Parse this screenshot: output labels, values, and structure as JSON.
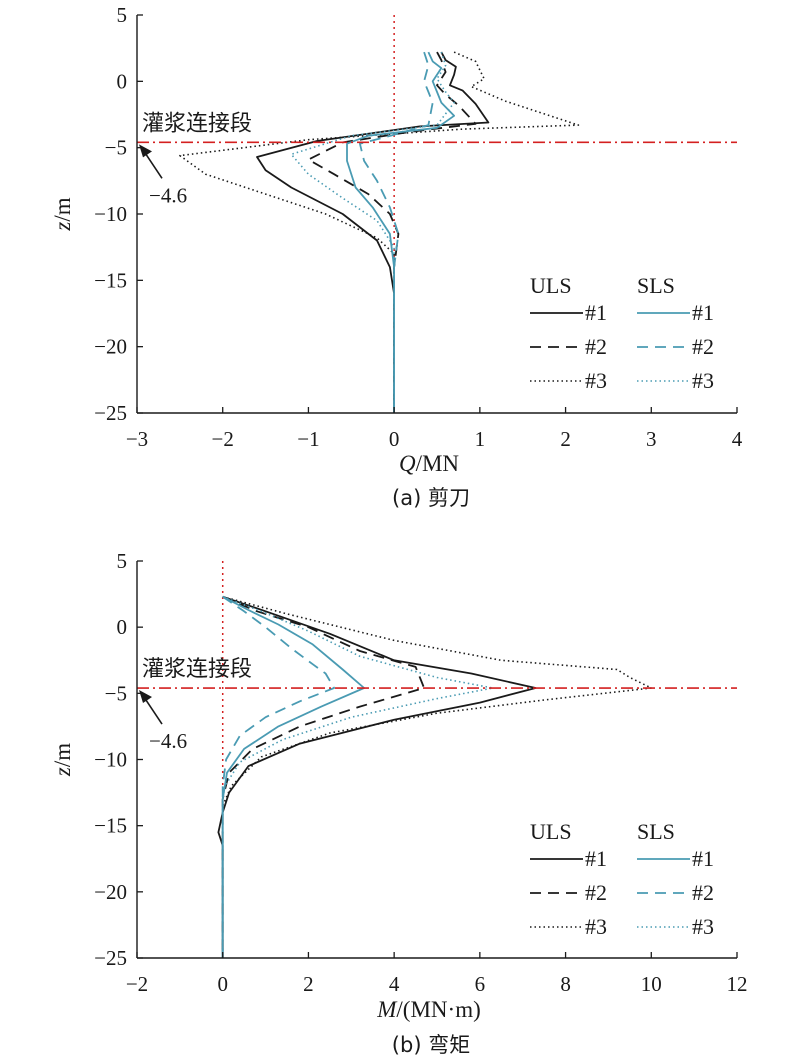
{
  "chart_data": [
    {
      "type": "line",
      "caption": "(a) 剪刀",
      "xlabel_var": "Q",
      "xlabel_unit": "/MN",
      "ylabel_var": "z",
      "ylabel_unit": "/m",
      "xlim": [
        -3,
        4
      ],
      "ylim": [
        -25,
        5
      ],
      "xticks": [
        "−3",
        "−2",
        "−1",
        "0",
        "1",
        "2",
        "3",
        "4"
      ],
      "yticks": [
        "5",
        "0",
        "−5",
        "−10",
        "−15",
        "−20",
        "−25"
      ],
      "ref_line_z": -4.6,
      "ref_label": "灌浆连接段",
      "ref_value_label": "−4.6",
      "legend": {
        "group1": "ULS",
        "group2": "SLS",
        "labels": [
          "#1",
          "#2",
          "#3"
        ]
      },
      "colors": {
        "uls": "#1a1a1a",
        "sls": "#4a9bb3",
        "ref_line": "#d42020"
      },
      "series": [
        {
          "group": "ULS",
          "name": "#1",
          "style": "solid",
          "points": [
            [
              0.55,
              2.2
            ],
            [
              0.6,
              1.6
            ],
            [
              0.72,
              1.1
            ],
            [
              0.7,
              0.5
            ],
            [
              0.65,
              -0.3
            ],
            [
              0.8,
              -0.7
            ],
            [
              0.95,
              -1.7
            ],
            [
              1.1,
              -3.1
            ],
            [
              0.3,
              -3.4
            ],
            [
              -0.9,
              -4.5
            ],
            [
              -1.6,
              -5.7
            ],
            [
              -1.5,
              -6.7
            ],
            [
              -1.2,
              -8.0
            ],
            [
              -0.6,
              -10.0
            ],
            [
              -0.2,
              -12.0
            ],
            [
              -0.05,
              -14.0
            ],
            [
              0.0,
              -16.0
            ],
            [
              0.0,
              -25.0
            ]
          ]
        },
        {
          "group": "ULS",
          "name": "#2",
          "style": "dashed",
          "points": [
            [
              0.5,
              2.2
            ],
            [
              0.55,
              1.6
            ],
            [
              0.6,
              0.7
            ],
            [
              0.5,
              -0.3
            ],
            [
              0.6,
              -1.0
            ],
            [
              0.75,
              -1.8
            ],
            [
              0.95,
              -3.2
            ],
            [
              0.2,
              -3.8
            ],
            [
              -0.6,
              -4.6
            ],
            [
              -1.0,
              -5.9
            ],
            [
              -0.7,
              -7.0
            ],
            [
              -0.3,
              -8.5
            ],
            [
              -0.05,
              -10.0
            ],
            [
              0.05,
              -11.5
            ],
            [
              0.0,
              -14.0
            ],
            [
              0.0,
              -25.0
            ]
          ]
        },
        {
          "group": "ULS",
          "name": "#3",
          "style": "dotted",
          "points": [
            [
              0.7,
              2.2
            ],
            [
              0.95,
              1.5
            ],
            [
              1.05,
              0.2
            ],
            [
              0.9,
              -0.4
            ],
            [
              1.3,
              -1.5
            ],
            [
              2.15,
              -3.3
            ],
            [
              0.8,
              -3.6
            ],
            [
              -1.0,
              -4.4
            ],
            [
              -2.5,
              -5.6
            ],
            [
              -2.2,
              -7.0
            ],
            [
              -1.5,
              -8.5
            ],
            [
              -0.8,
              -10.0
            ],
            [
              -0.2,
              -11.8
            ],
            [
              0.0,
              -13.0
            ],
            [
              0.0,
              -25.0
            ]
          ]
        },
        {
          "group": "SLS",
          "name": "#1",
          "style": "solid",
          "points": [
            [
              0.4,
              2.2
            ],
            [
              0.45,
              1.5
            ],
            [
              0.55,
              1.0
            ],
            [
              0.45,
              0.0
            ],
            [
              0.5,
              -0.8
            ],
            [
              0.55,
              -1.6
            ],
            [
              0.7,
              -2.6
            ],
            [
              0.5,
              -3.5
            ],
            [
              -0.3,
              -4.1
            ],
            [
              -0.55,
              -4.7
            ],
            [
              -0.55,
              -6.0
            ],
            [
              -0.45,
              -8.0
            ],
            [
              -0.25,
              -9.5
            ],
            [
              -0.05,
              -11.5
            ],
            [
              0.0,
              -14.0
            ],
            [
              0.0,
              -25.0
            ]
          ]
        },
        {
          "group": "SLS",
          "name": "#2",
          "style": "dashed",
          "points": [
            [
              0.35,
              2.2
            ],
            [
              0.4,
              1.2
            ],
            [
              0.35,
              0.0
            ],
            [
              0.4,
              -0.8
            ],
            [
              0.45,
              -1.6
            ],
            [
              0.4,
              -3.3
            ],
            [
              -0.1,
              -4.2
            ],
            [
              -0.4,
              -4.7
            ],
            [
              -0.35,
              -6.0
            ],
            [
              -0.2,
              -7.5
            ],
            [
              -0.05,
              -9.5
            ],
            [
              0.05,
              -11.5
            ],
            [
              0.0,
              -14.0
            ],
            [
              0.0,
              -25.0
            ]
          ]
        },
        {
          "group": "SLS",
          "name": "#3",
          "style": "dotted",
          "points": [
            [
              0.55,
              2.2
            ],
            [
              0.6,
              1.2
            ],
            [
              0.5,
              0.2
            ],
            [
              0.6,
              -0.8
            ],
            [
              0.7,
              -1.6
            ],
            [
              0.5,
              -3.3
            ],
            [
              -0.5,
              -4.1
            ],
            [
              -1.2,
              -5.5
            ],
            [
              -1.0,
              -7.0
            ],
            [
              -0.6,
              -8.8
            ],
            [
              -0.2,
              -10.5
            ],
            [
              0.0,
              -12.5
            ],
            [
              0.0,
              -25.0
            ]
          ]
        }
      ]
    },
    {
      "type": "line",
      "caption": "(b) 弯矩",
      "xlabel_var": "M",
      "xlabel_unit": "/(MN·m)",
      "ylabel_var": "z",
      "ylabel_unit": "/m",
      "xlim": [
        -2,
        12
      ],
      "ylim": [
        -25,
        5
      ],
      "xticks": [
        "−2",
        "0",
        "2",
        "4",
        "6",
        "8",
        "10",
        "12"
      ],
      "yticks": [
        "5",
        "0",
        "−5",
        "−10",
        "−15",
        "−20",
        "−25"
      ],
      "ref_line_z": -4.6,
      "ref_label": "灌浆连接段",
      "ref_value_label": "−4.6",
      "legend": {
        "group1": "ULS",
        "group2": "SLS",
        "labels": [
          "#1",
          "#2",
          "#3"
        ]
      },
      "colors": {
        "uls": "#1a1a1a",
        "sls": "#4a9bb3",
        "ref_line": "#d42020"
      },
      "series": [
        {
          "group": "ULS",
          "name": "#1",
          "style": "solid",
          "points": [
            [
              0.0,
              2.3
            ],
            [
              1.0,
              1.2
            ],
            [
              2.5,
              -0.5
            ],
            [
              4.0,
              -2.5
            ],
            [
              5.8,
              -3.5
            ],
            [
              7.3,
              -4.6
            ],
            [
              6.0,
              -5.7
            ],
            [
              4.0,
              -7.0
            ],
            [
              1.8,
              -8.8
            ],
            [
              0.6,
              -10.5
            ],
            [
              0.15,
              -12.5
            ],
            [
              0.0,
              -14.0
            ],
            [
              -0.1,
              -15.5
            ],
            [
              0.0,
              -16.5
            ],
            [
              0.0,
              -25.0
            ]
          ]
        },
        {
          "group": "ULS",
          "name": "#2",
          "style": "dashed",
          "points": [
            [
              0.0,
              2.3
            ],
            [
              0.8,
              1.2
            ],
            [
              2.0,
              0.0
            ],
            [
              3.2,
              -1.8
            ],
            [
              4.5,
              -3.0
            ],
            [
              4.6,
              -3.8
            ],
            [
              4.7,
              -4.6
            ],
            [
              3.2,
              -6.0
            ],
            [
              1.8,
              -7.5
            ],
            [
              0.7,
              -9.2
            ],
            [
              0.15,
              -11.0
            ],
            [
              0.0,
              -13.0
            ],
            [
              0.0,
              -25.0
            ]
          ]
        },
        {
          "group": "ULS",
          "name": "#3",
          "style": "dotted",
          "points": [
            [
              0.0,
              2.3
            ],
            [
              1.5,
              1.0
            ],
            [
              4.0,
              -1.0
            ],
            [
              6.5,
              -2.5
            ],
            [
              9.2,
              -3.2
            ],
            [
              9.5,
              -3.8
            ],
            [
              10.0,
              -4.6
            ],
            [
              7.5,
              -5.5
            ],
            [
              5.0,
              -6.5
            ],
            [
              2.5,
              -8.0
            ],
            [
              0.9,
              -9.8
            ],
            [
              0.2,
              -12.0
            ],
            [
              0.0,
              -13.5
            ],
            [
              0.0,
              -25.0
            ]
          ]
        },
        {
          "group": "SLS",
          "name": "#1",
          "style": "solid",
          "points": [
            [
              0.0,
              2.3
            ],
            [
              0.6,
              1.3
            ],
            [
              1.3,
              0.2
            ],
            [
              2.1,
              -1.3
            ],
            [
              2.8,
              -3.2
            ],
            [
              3.3,
              -4.6
            ],
            [
              2.3,
              -6.0
            ],
            [
              1.3,
              -7.5
            ],
            [
              0.5,
              -9.2
            ],
            [
              0.1,
              -11.0
            ],
            [
              0.0,
              -13.0
            ],
            [
              0.0,
              -25.0
            ]
          ]
        },
        {
          "group": "SLS",
          "name": "#2",
          "style": "dashed",
          "points": [
            [
              0.0,
              2.3
            ],
            [
              0.5,
              1.2
            ],
            [
              1.0,
              0.0
            ],
            [
              1.6,
              -1.6
            ],
            [
              2.1,
              -2.8
            ],
            [
              2.4,
              -3.5
            ],
            [
              2.6,
              -4.6
            ],
            [
              1.8,
              -5.6
            ],
            [
              1.0,
              -6.8
            ],
            [
              0.4,
              -8.2
            ],
            [
              0.08,
              -10.0
            ],
            [
              0.0,
              -12.0
            ],
            [
              0.0,
              -25.0
            ]
          ]
        },
        {
          "group": "SLS",
          "name": "#3",
          "style": "dotted",
          "points": [
            [
              0.0,
              2.3
            ],
            [
              0.9,
              1.2
            ],
            [
              2.0,
              -0.3
            ],
            [
              3.2,
              -2.2
            ],
            [
              5.0,
              -3.8
            ],
            [
              6.3,
              -4.6
            ],
            [
              5.0,
              -5.4
            ],
            [
              3.0,
              -6.8
            ],
            [
              1.4,
              -8.5
            ],
            [
              0.4,
              -10.2
            ],
            [
              0.05,
              -12.0
            ],
            [
              0.0,
              -13.0
            ],
            [
              0.0,
              -25.0
            ]
          ]
        }
      ]
    }
  ]
}
